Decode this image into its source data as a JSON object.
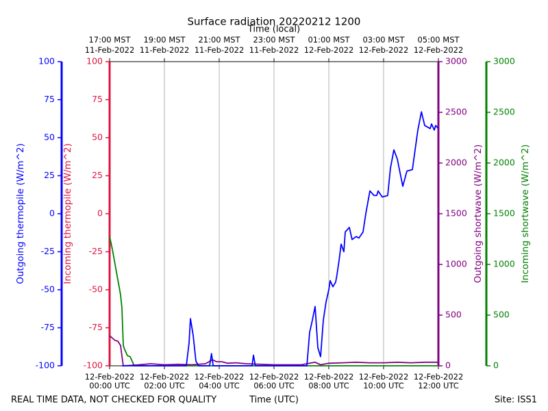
{
  "chart_data": {
    "type": "line",
    "title": "Surface radiation 20220212 1200",
    "x_label": "Time (UTC)",
    "x2_label": "Time (local)",
    "annotations": [
      "REAL TIME DATA, NOT CHECKED FOR QUALITY",
      "Site: ISS1"
    ],
    "xlim": [
      0,
      12
    ],
    "xticks": [
      {
        "value": 0,
        "label": [
          "12-Feb-2022",
          "00:00 UTC"
        ]
      },
      {
        "value": 2,
        "label": [
          "12-Feb-2022",
          "02:00 UTC"
        ]
      },
      {
        "value": 4,
        "label": [
          "12-Feb-2022",
          "04:00 UTC"
        ]
      },
      {
        "value": 6,
        "label": [
          "12-Feb-2022",
          "06:00 UTC"
        ]
      },
      {
        "value": 8,
        "label": [
          "12-Feb-2022",
          "08:00 UTC"
        ]
      },
      {
        "value": 10,
        "label": [
          "12-Feb-2022",
          "10:00 UTC"
        ]
      },
      {
        "value": 12,
        "label": [
          "12-Feb-2022",
          "12:00 UTC"
        ]
      }
    ],
    "x2ticks": [
      {
        "value": 0,
        "label": [
          "17:00 MST",
          "11-Feb-2022"
        ]
      },
      {
        "value": 2,
        "label": [
          "19:00 MST",
          "11-Feb-2022"
        ]
      },
      {
        "value": 4,
        "label": [
          "21:00 MST",
          "11-Feb-2022"
        ]
      },
      {
        "value": 6,
        "label": [
          "23:00 MST",
          "11-Feb-2022"
        ]
      },
      {
        "value": 8,
        "label": [
          "01:00 MST",
          "12-Feb-2022"
        ]
      },
      {
        "value": 10,
        "label": [
          "03:00 MST",
          "12-Feb-2022"
        ]
      },
      {
        "value": 12,
        "label": [
          "05:00 MST",
          "12-Feb-2022"
        ]
      }
    ],
    "grid": true,
    "axes": [
      {
        "label": "Outgoing thermopile (W/m^2)",
        "color": "#0000ff",
        "ylim": [
          -100,
          100
        ],
        "yticks": [
          -100,
          -75,
          -50,
          -25,
          0,
          25,
          50,
          75,
          100
        ]
      },
      {
        "label": "Incoming thermopile (W/m^2)",
        "color": "#dc143c",
        "ylim": [
          -100,
          100
        ],
        "yticks": [
          -100,
          -75,
          -50,
          -25,
          0,
          25,
          50,
          75,
          100
        ]
      },
      {
        "label": "Outgoing shortwave (W/m^2)",
        "color": "#800080",
        "ylim": [
          0,
          3000
        ],
        "yticks": [
          0,
          500,
          1000,
          1500,
          2000,
          2500,
          3000
        ]
      },
      {
        "label": "Incoming shortwave (W/m^2)",
        "color": "#008000",
        "ylim": [
          0,
          3000
        ],
        "yticks": [
          0,
          500,
          1000,
          1500,
          2000,
          2500,
          3000
        ]
      }
    ],
    "series": [
      {
        "name": "Outgoing thermopile",
        "color": "#0000ff",
        "axis": 0,
        "x": [
          0.45,
          2.8,
          2.9,
          2.95,
          3.05,
          3.15,
          3.25,
          3.65,
          3.72,
          3.78,
          5.2,
          5.25,
          5.32,
          7.2,
          7.3,
          7.4,
          7.5,
          7.6,
          7.7,
          7.8,
          7.9,
          8.0,
          8.05,
          8.15,
          8.25,
          8.3,
          8.38,
          8.45,
          8.55,
          8.6,
          8.75,
          8.85,
          9.0,
          9.1,
          9.25,
          9.35,
          9.45,
          9.5,
          9.65,
          9.75,
          9.8,
          9.95,
          10.15,
          10.25,
          10.375,
          10.5,
          10.7,
          10.85,
          11.05,
          11.25,
          11.38,
          11.5,
          11.7,
          11.75,
          11.85,
          11.9,
          12
        ],
        "values": [
          -100,
          -100,
          -85,
          -69,
          -80,
          -97,
          -100,
          -100,
          -92,
          -100,
          -100,
          -93,
          -100,
          -100,
          -78,
          -70,
          -61,
          -88,
          -94,
          -70,
          -58,
          -50,
          -44,
          -48,
          -45,
          -40,
          -30,
          -20,
          -25,
          -12,
          -9,
          -17,
          -15,
          -16,
          -12,
          0,
          10,
          15,
          12,
          12,
          15,
          11,
          12,
          30,
          42,
          36,
          18,
          28,
          29,
          55,
          67,
          58,
          56,
          59,
          55,
          58,
          56
        ]
      },
      {
        "name": "Outgoing shortwave",
        "color": "#800080",
        "axis": 2,
        "x": [
          0,
          0.2,
          0.3,
          0.4,
          0.45,
          0.5,
          1.0,
          1.5,
          2.0,
          2.5,
          3.0,
          3.5,
          3.75,
          3.9,
          4.1,
          4.3,
          4.6,
          5.0,
          5.5,
          6.0,
          6.5,
          7.0,
          7.5,
          7.7,
          8.0,
          8.5,
          9.0,
          9.5,
          10.0,
          10.5,
          11.0,
          11.5,
          12
        ],
        "values": [
          297,
          250,
          243,
          200,
          95,
          0,
          8,
          20,
          10,
          15,
          10,
          20,
          60,
          40,
          40,
          25,
          30,
          20,
          15,
          10,
          10,
          10,
          35,
          10,
          25,
          30,
          35,
          30,
          30,
          35,
          30,
          35,
          35
        ]
      },
      {
        "name": "Incoming shortwave",
        "color": "#008000",
        "axis": 3,
        "x": [
          0,
          0.1,
          0.2,
          0.3,
          0.4,
          0.45,
          0.5,
          0.55,
          0.65,
          0.75,
          0.85,
          0.9,
          12
        ],
        "values": [
          1277,
          1150,
          1000,
          850,
          700,
          568,
          200,
          160,
          100,
          90,
          30,
          0,
          0
        ]
      }
    ]
  }
}
